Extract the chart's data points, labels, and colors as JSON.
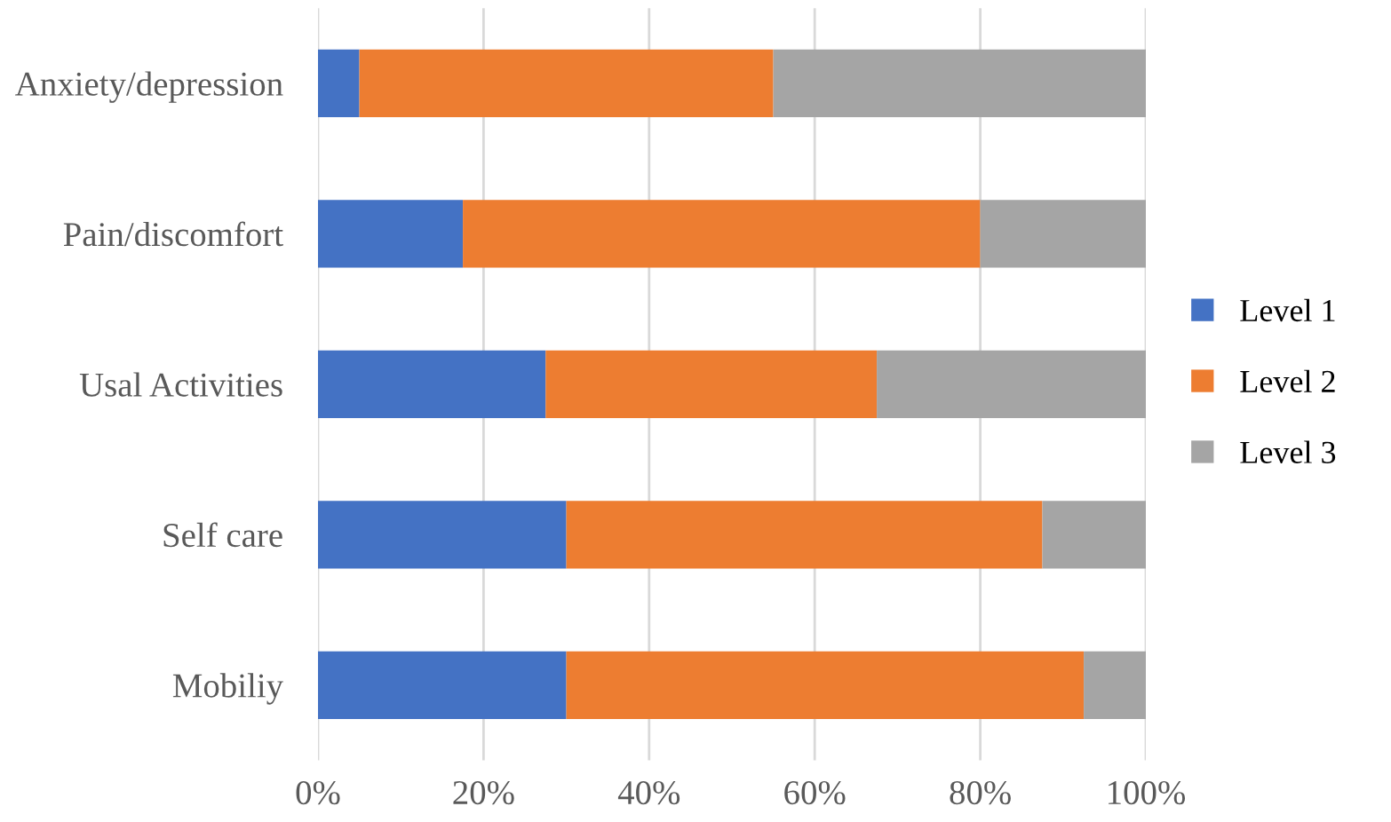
{
  "chart_data": {
    "type": "bar",
    "orientation": "horizontal",
    "stacked": true,
    "categories": [
      "Anxiety/depression",
      "Pain/discomfort",
      "Usal Activities",
      "Self care",
      "Mobiliy"
    ],
    "series": [
      {
        "name": "Level 1",
        "color": "#4472c4",
        "values": [
          5,
          17.5,
          27.5,
          30,
          30
        ]
      },
      {
        "name": "Level 2",
        "color": "#ed7d31",
        "values": [
          50,
          62.5,
          40,
          57.5,
          62.5
        ]
      },
      {
        "name": "Level 3",
        "color": "#a5a5a5",
        "values": [
          45,
          20,
          32.5,
          12.5,
          7.5
        ]
      }
    ],
    "xlim": [
      0,
      100
    ],
    "xticks": [
      {
        "value": 0,
        "label": "0%"
      },
      {
        "value": 20,
        "label": "20%"
      },
      {
        "value": 40,
        "label": "40%"
      },
      {
        "value": 60,
        "label": "60%"
      },
      {
        "value": 80,
        "label": "80%"
      },
      {
        "value": 100,
        "label": "100%"
      }
    ],
    "grid": "x",
    "legend": "right"
  }
}
